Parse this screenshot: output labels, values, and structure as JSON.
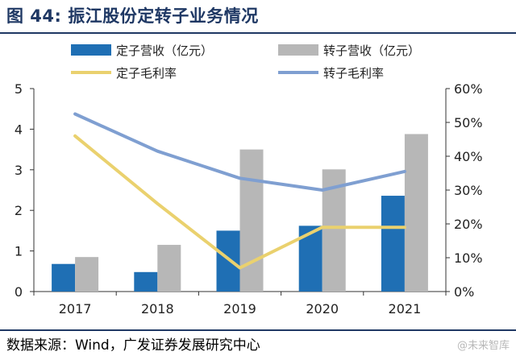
{
  "header": {
    "title": "图 44: 振江股份定转子业务情况"
  },
  "footer": {
    "source": "数据来源：Wind，广发证券发展研究中心",
    "watermark": "@未来智库"
  },
  "chart_data": {
    "type": "bar",
    "categories": [
      "2017",
      "2018",
      "2019",
      "2020",
      "2021"
    ],
    "series": [
      {
        "name": "定子营收（亿元）",
        "kind": "bar",
        "axis": "left",
        "color": "#1f6fb4",
        "values": [
          0.68,
          0.48,
          1.5,
          1.62,
          2.36
        ]
      },
      {
        "name": "转子营收（亿元）",
        "kind": "bar",
        "axis": "left",
        "color": "#b7b7b7",
        "values": [
          0.85,
          1.15,
          3.5,
          3.01,
          3.88
        ]
      },
      {
        "name": "定子毛利率",
        "kind": "line",
        "axis": "right",
        "color": "#ead16e",
        "values": [
          0.46,
          0.26,
          0.07,
          0.19,
          0.19
        ]
      },
      {
        "name": "转子毛利率",
        "kind": "line",
        "axis": "right",
        "color": "#7f9fd1",
        "values": [
          0.525,
          0.415,
          0.335,
          0.3,
          0.355
        ]
      }
    ],
    "y_left": {
      "min": 0,
      "max": 5,
      "ticks": [
        "0",
        "1",
        "2",
        "3",
        "4",
        "5"
      ]
    },
    "y_right": {
      "min": 0,
      "max": 0.6,
      "ticks": [
        "0%",
        "10%",
        "20%",
        "30%",
        "40%",
        "50%",
        "60%"
      ]
    },
    "legend_position": "top",
    "grid": false
  }
}
